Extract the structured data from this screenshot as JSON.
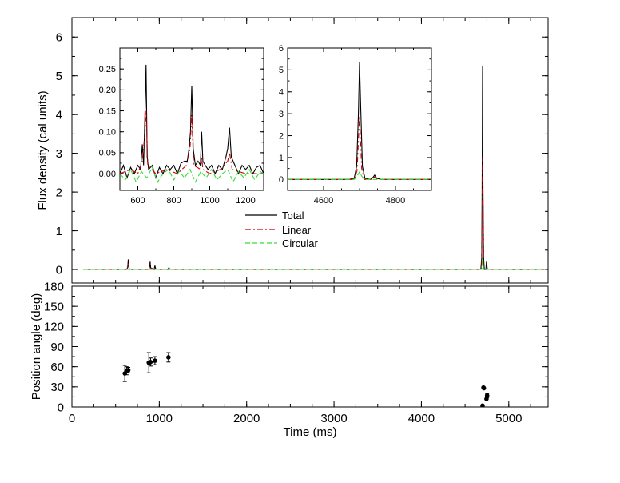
{
  "legend": {
    "total": "Total",
    "linear": "Linear",
    "circular": "Circular"
  },
  "chart_data": [
    {
      "panel": "flux-main",
      "type": "line",
      "xlabel": "",
      "ylabel": "Flux density (cal units)",
      "xlim": [
        0,
        5450
      ],
      "ylim": [
        -0.35,
        6.5
      ],
      "yticks": [
        0,
        1,
        2,
        3,
        4,
        5,
        6
      ],
      "xticks": [
        0,
        1000,
        2000,
        3000,
        4000,
        5000
      ],
      "series": [
        {
          "name": "Total",
          "color": "#000000",
          "style": "solid",
          "x": [
            130,
            630,
            638,
            645,
            652,
            660,
            880,
            888,
            895,
            902,
            940,
            950,
            960,
            1100,
            1110,
            1120,
            4680,
            4690,
            4695,
            4700,
            4705,
            4712,
            4720,
            4738,
            4745,
            4755,
            5420
          ],
          "y": [
            0,
            0,
            0.06,
            0.26,
            0.05,
            0,
            0,
            0.05,
            0.2,
            0.04,
            0,
            0.1,
            0,
            0,
            0.05,
            0,
            0,
            0.3,
            2.0,
            5.25,
            2.2,
            0.3,
            0,
            0,
            0.2,
            0,
            0
          ]
        },
        {
          "name": "Linear",
          "color": "#cc0000",
          "style": "dashdot",
          "x": [
            130,
            630,
            645,
            660,
            880,
            895,
            910,
            4690,
            4700,
            4712,
            5420
          ],
          "y": [
            0,
            0,
            0.15,
            0,
            0,
            0.14,
            0,
            0,
            2.9,
            0,
            0
          ]
        },
        {
          "name": "Circular",
          "color": "#33dd33",
          "style": "dashed",
          "x": [
            130,
            4690,
            4700,
            4712,
            5420
          ],
          "y": [
            0,
            0,
            0.3,
            0,
            0
          ]
        }
      ]
    },
    {
      "panel": "inset-left",
      "type": "line",
      "xlim": [
        500,
        1300
      ],
      "ylim": [
        -0.04,
        0.3
      ],
      "yticks": [
        0.0,
        0.05,
        0.1,
        0.15,
        0.2,
        0.25
      ],
      "ytick_labels": [
        "0.00",
        "0.05",
        "0.10",
        "0.15",
        "0.20",
        "0.25"
      ],
      "xticks": [
        600,
        800,
        1000,
        1200
      ],
      "series": [
        {
          "name": "Total",
          "color": "#000000",
          "style": "solid",
          "x": [
            500,
            520,
            540,
            560,
            580,
            600,
            615,
            625,
            632,
            640,
            646,
            652,
            660,
            680,
            700,
            720,
            740,
            760,
            780,
            800,
            820,
            840,
            860,
            875,
            885,
            893,
            900,
            908,
            920,
            935,
            948,
            955,
            962,
            975,
            990,
            1010,
            1030,
            1050,
            1070,
            1090,
            1100,
            1110,
            1120,
            1140,
            1160,
            1180,
            1200,
            1220,
            1240,
            1260,
            1280,
            1300
          ],
          "y": [
            0.0,
            0.02,
            -0.01,
            0.015,
            0.0,
            0.02,
            0.01,
            0.07,
            0.02,
            0.15,
            0.26,
            0.04,
            0.01,
            0.02,
            -0.01,
            0.015,
            0.0,
            0.02,
            0.01,
            0.02,
            0.0,
            0.025,
            0.03,
            0.03,
            0.06,
            0.1,
            0.21,
            0.06,
            0.02,
            0.03,
            0.02,
            0.1,
            0.03,
            0.02,
            0.01,
            0.02,
            0.0,
            0.02,
            0.01,
            0.04,
            0.06,
            0.11,
            0.04,
            0.02,
            0.0,
            0.02,
            0.01,
            0.02,
            0.0,
            0.015,
            0.02,
            0.0
          ]
        },
        {
          "name": "Linear",
          "color": "#cc0000",
          "style": "dashdot",
          "x": [
            500,
            560,
            600,
            625,
            640,
            646,
            655,
            700,
            760,
            820,
            870,
            890,
            900,
            910,
            950,
            955,
            962,
            1000,
            1060,
            1100,
            1110,
            1125,
            1200,
            1300
          ],
          "y": [
            0.0,
            0.01,
            0.0,
            0.03,
            0.1,
            0.15,
            0.02,
            0.0,
            0.01,
            0.0,
            0.02,
            0.06,
            0.14,
            0.02,
            0.01,
            0.04,
            0.01,
            0.0,
            0.01,
            0.03,
            0.05,
            0.01,
            0.0,
            0.0
          ]
        },
        {
          "name": "Circular",
          "color": "#33dd33",
          "style": "dashed",
          "x": [
            500,
            530,
            560,
            590,
            620,
            650,
            680,
            710,
            740,
            770,
            800,
            830,
            860,
            890,
            920,
            950,
            980,
            1010,
            1040,
            1070,
            1100,
            1130,
            1160,
            1190,
            1220,
            1250,
            1280,
            1300
          ],
          "y": [
            0.0,
            -0.015,
            0.01,
            -0.02,
            0.005,
            -0.01,
            0.015,
            -0.02,
            0.0,
            0.01,
            -0.015,
            0.005,
            -0.01,
            0.01,
            -0.02,
            0.005,
            -0.01,
            0.01,
            -0.015,
            0.0,
            0.01,
            -0.02,
            0.005,
            -0.01,
            0.01,
            -0.015,
            0.005,
            0.0
          ]
        }
      ]
    },
    {
      "panel": "inset-right",
      "type": "line",
      "xlim": [
        4500,
        4900
      ],
      "ylim": [
        -0.5,
        6.0
      ],
      "yticks": [
        0,
        1,
        2,
        3,
        4,
        5,
        6
      ],
      "xticks": [
        4600,
        4800
      ],
      "series": [
        {
          "name": "Total",
          "color": "#000000",
          "style": "solid",
          "x": [
            4500,
            4670,
            4685,
            4692,
            4697,
            4700,
            4703,
            4708,
            4715,
            4730,
            4737,
            4742,
            4748,
            4760,
            4900
          ],
          "y": [
            0,
            0,
            0.05,
            0.6,
            3.0,
            5.35,
            3.4,
            0.6,
            0.05,
            0,
            0.08,
            0.2,
            0.05,
            0,
            0
          ]
        },
        {
          "name": "Linear",
          "color": "#cc0000",
          "style": "dashdot",
          "x": [
            4500,
            4685,
            4693,
            4700,
            4706,
            4713,
            4735,
            4742,
            4750,
            4900
          ],
          "y": [
            0,
            0,
            0.4,
            2.9,
            0.5,
            0,
            0,
            0.12,
            0,
            0
          ]
        },
        {
          "name": "Circular",
          "color": "#33dd33",
          "style": "dashed",
          "x": [
            4500,
            4685,
            4693,
            4700,
            4706,
            4713,
            4900
          ],
          "y": [
            0,
            0,
            0.15,
            0.35,
            0.15,
            0,
            0
          ]
        }
      ]
    },
    {
      "panel": "position-angle",
      "type": "scatter",
      "xlabel": "Time (ms)",
      "ylabel": "Position angle (deg)",
      "xlim": [
        0,
        5450
      ],
      "ylim": [
        0,
        180
      ],
      "yticks": [
        0,
        30,
        60,
        90,
        120,
        150,
        180
      ],
      "xticks": [
        0,
        1000,
        2000,
        3000,
        4000,
        5000
      ],
      "points": [
        {
          "x": 605,
          "y": 50,
          "err": 12
        },
        {
          "x": 625,
          "y": 54,
          "err": 6
        },
        {
          "x": 645,
          "y": 55,
          "err": 4
        },
        {
          "x": 880,
          "y": 66,
          "err": 15
        },
        {
          "x": 900,
          "y": 67,
          "err": 6
        },
        {
          "x": 950,
          "y": 69,
          "err": 6
        },
        {
          "x": 1105,
          "y": 74,
          "err": 7
        },
        {
          "x": 4700,
          "y": 2,
          "err": 0
        },
        {
          "x": 4710,
          "y": 29,
          "err": 0
        },
        {
          "x": 4715,
          "y": 28,
          "err": 0
        },
        {
          "x": 4745,
          "y": 12,
          "err": 0
        },
        {
          "x": 4752,
          "y": 17,
          "err": 3
        }
      ]
    }
  ]
}
